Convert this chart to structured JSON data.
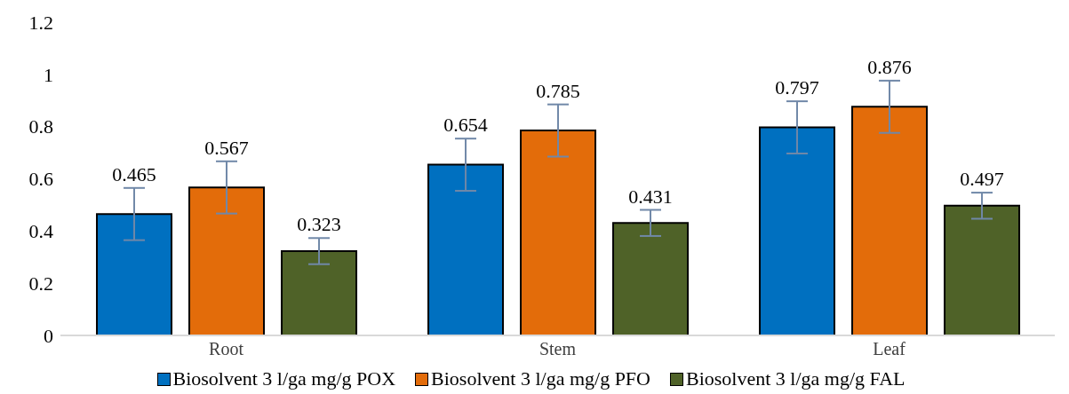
{
  "chart_data": {
    "type": "bar",
    "categories": [
      "Root",
      "Stem",
      "Leaf"
    ],
    "series": [
      {
        "name": "Biosolvent 3 l/ga mg/g POX",
        "color": "#0070c0",
        "values": [
          0.465,
          0.654,
          0.797
        ],
        "errors": [
          0.1,
          0.1,
          0.1
        ]
      },
      {
        "name": "Biosolvent 3 l/ga mg/g PFO",
        "color": "#e36c0a",
        "values": [
          0.567,
          0.785,
          0.876
        ],
        "errors": [
          0.1,
          0.1,
          0.1
        ]
      },
      {
        "name": "Biosolvent 3 l/ga mg/g FAL",
        "color": "#4f6228",
        "values": [
          0.323,
          0.431,
          0.497
        ],
        "errors": [
          0.05,
          0.05,
          0.05
        ]
      }
    ],
    "ylim": [
      0,
      1.2
    ],
    "yticks": [
      0,
      0.2,
      0.4,
      0.6,
      0.8,
      1,
      1.2
    ],
    "data_labels": true,
    "grid": false,
    "legend": "bottom"
  }
}
